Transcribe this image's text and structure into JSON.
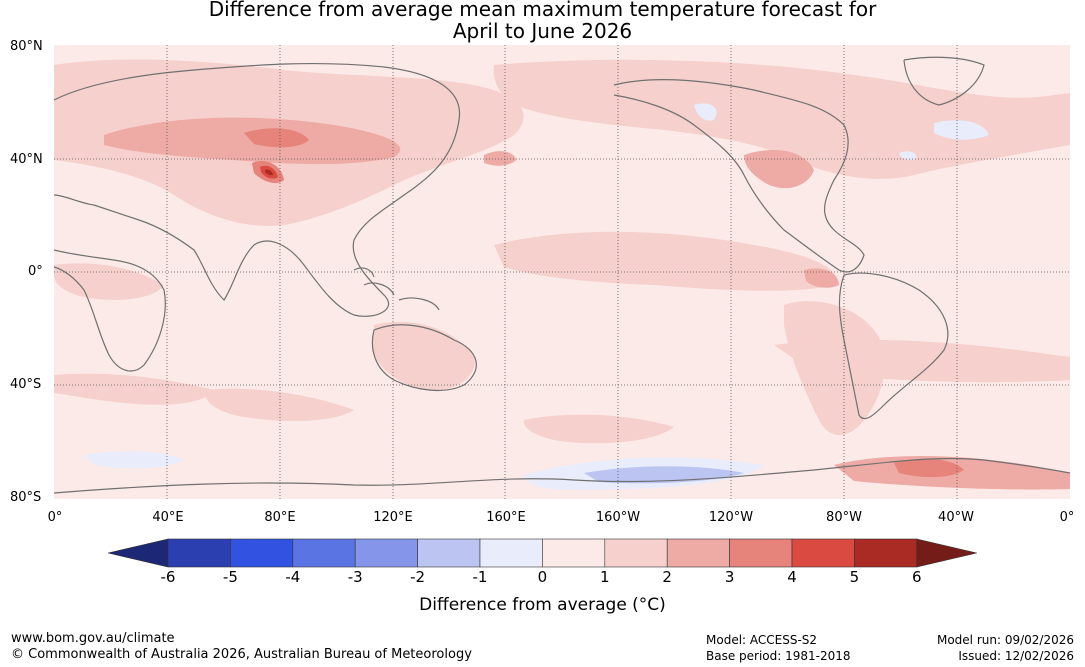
{
  "title_line1": "Difference from average mean maximum temperature forecast for",
  "title_line2": "April to June 2026",
  "lat_labels": [
    "80°N",
    "40°N",
    "0°",
    "40°S",
    "80°S"
  ],
  "lon_labels": [
    "0°",
    "40°E",
    "80°E",
    "120°E",
    "160°E",
    "160°W",
    "120°W",
    "80°W",
    "40°W",
    "0°"
  ],
  "colorbar": {
    "tick_labels": [
      "-6",
      "-5",
      "-4",
      "-3",
      "-2",
      "-1",
      "0",
      "1",
      "2",
      "3",
      "4",
      "5",
      "6"
    ],
    "colors": [
      "#1c2775",
      "#2b3fb0",
      "#3252e2",
      "#5b74e4",
      "#8596ea",
      "#bcc5f2",
      "#e8ecfb",
      "#fceae8",
      "#f5d0cc",
      "#eeaaa5",
      "#e6837b",
      "#da4a40",
      "#aa2a24",
      "#731c18"
    ],
    "title": "Difference from average (°C)"
  },
  "footer": {
    "url": "www.bom.gov.au/climate",
    "copyright": "© Commonwealth of Australia 2026, Australian Bureau of Meteorology",
    "model": "Model: ACCESS-S2",
    "base_period": "Base period: 1981-2018",
    "model_run": "Model run: 09/02/2026",
    "issued": "Issued: 12/02/2026"
  },
  "map_colors": {
    "background": "#fceae8",
    "warm1": "#f5d0cc",
    "warm2": "#eeaaa5",
    "warm3": "#e6837b",
    "warm4": "#da4a40",
    "warm5": "#aa2a24",
    "cool1": "#e8ecfb",
    "cool2": "#bcc5f2",
    "coast": "#707070"
  }
}
